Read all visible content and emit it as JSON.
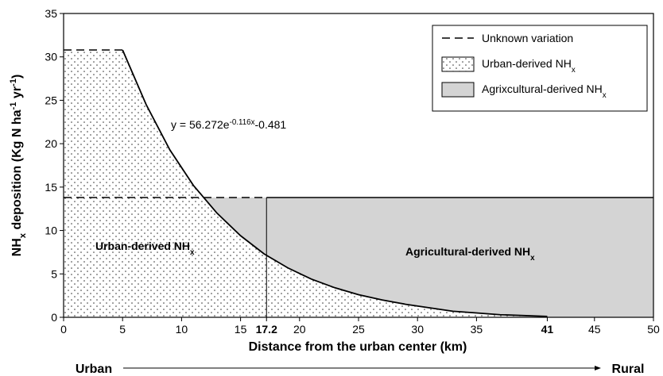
{
  "chart_data": {
    "type": "line",
    "xlabel": "Distance from the urban center (km)",
    "ylabel": [
      {
        "text": "NH"
      },
      {
        "text": "x",
        "shift": "sub"
      },
      {
        "text": " deposition (Kg N ha"
      },
      {
        "text": "-1",
        "shift": "super"
      },
      {
        "text": " yr"
      },
      {
        "text": "-1",
        "shift": "super"
      },
      {
        "text": ")"
      }
    ],
    "xlim": [
      0,
      50
    ],
    "ylim": [
      0,
      35
    ],
    "xticks": [
      0,
      5,
      10,
      15,
      20,
      25,
      30,
      35,
      45,
      50
    ],
    "bold_xticks": [
      17.2,
      41
    ],
    "yticks": [
      0,
      5,
      10,
      15,
      20,
      25,
      30,
      35
    ],
    "urban_cap": 30.8,
    "threshold": 13.8,
    "curve": {
      "x": [
        5,
        7,
        9,
        11,
        13,
        15,
        17,
        19,
        21,
        23,
        25,
        27,
        29,
        31,
        33,
        35,
        37,
        39,
        41
      ],
      "values": [
        30.8,
        24.5,
        19.3,
        15.2,
        12.0,
        9.4,
        7.3,
        5.7,
        4.4,
        3.4,
        2.6,
        2.0,
        1.5,
        1.1,
        0.7,
        0.5,
        0.3,
        0.2,
        0.1
      ]
    },
    "equation": [
      {
        "text": "y = 56.272e"
      },
      {
        "text": "-0.116x",
        "shift": "super"
      },
      {
        "text": "-0.481"
      }
    ],
    "urban_label": [
      {
        "text": "Urban-derived NH"
      },
      {
        "text": "x",
        "shift": "sub"
      }
    ],
    "agri_label": [
      {
        "text": "Agricultural-derived NH"
      },
      {
        "text": "x",
        "shift": "sub"
      }
    ],
    "legend": [
      {
        "kind": "dash",
        "label": [
          {
            "text": "Unknown variation"
          }
        ]
      },
      {
        "kind": "dots",
        "label": [
          {
            "text": "Urban-derived NH"
          },
          {
            "text": "x",
            "shift": "sub"
          }
        ]
      },
      {
        "kind": "gray",
        "label": [
          {
            "text": "Agrixcultural-derived NH"
          },
          {
            "text": "x",
            "shift": "sub"
          }
        ]
      }
    ],
    "gray_color": "#d4d4d4",
    "from_label": "Urban",
    "to_label": "Rural"
  }
}
